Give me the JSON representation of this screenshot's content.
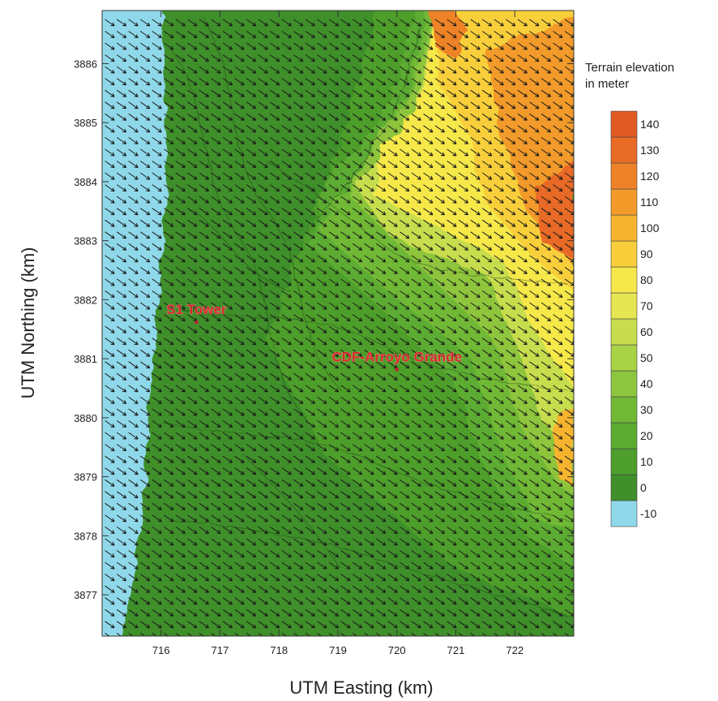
{
  "chart_data": {
    "type": "heatmap",
    "xlabel": "UTM Easting (km)",
    "ylabel": "UTM Northing (km)",
    "xlim": [
      715.0,
      723.0
    ],
    "ylim": [
      3876.3,
      3886.9
    ],
    "x_ticks": [
      716,
      717,
      718,
      719,
      720,
      721,
      722
    ],
    "y_ticks": [
      3877,
      3878,
      3879,
      3880,
      3881,
      3882,
      3883,
      3884,
      3885,
      3886
    ],
    "colorbar": {
      "title_lines": [
        "Terrain elevation",
        "in meter"
      ],
      "levels": [
        -10,
        0,
        10,
        20,
        30,
        40,
        50,
        60,
        70,
        80,
        90,
        100,
        110,
        120,
        130,
        140
      ],
      "colors": [
        "#8fd8ea",
        "#3f8f2a",
        "#4d9e2c",
        "#5cab30",
        "#70b836",
        "#8ec53e",
        "#a9d246",
        "#c8dd4e",
        "#e6e552",
        "#f6e84a",
        "#f8cf3a",
        "#f6b42e",
        "#f29a2a",
        "#ee8228",
        "#e86b26",
        "#e25a25"
      ]
    },
    "annotations": [
      {
        "text": "S1 Tower",
        "x": 716.6,
        "y": 3881.7
      },
      {
        "text": "CDF-Arroyo Grande",
        "x": 720.0,
        "y": 3880.9
      }
    ],
    "wind_vectors": {
      "direction": "toward southeast",
      "spacing_km": 0.2
    }
  }
}
